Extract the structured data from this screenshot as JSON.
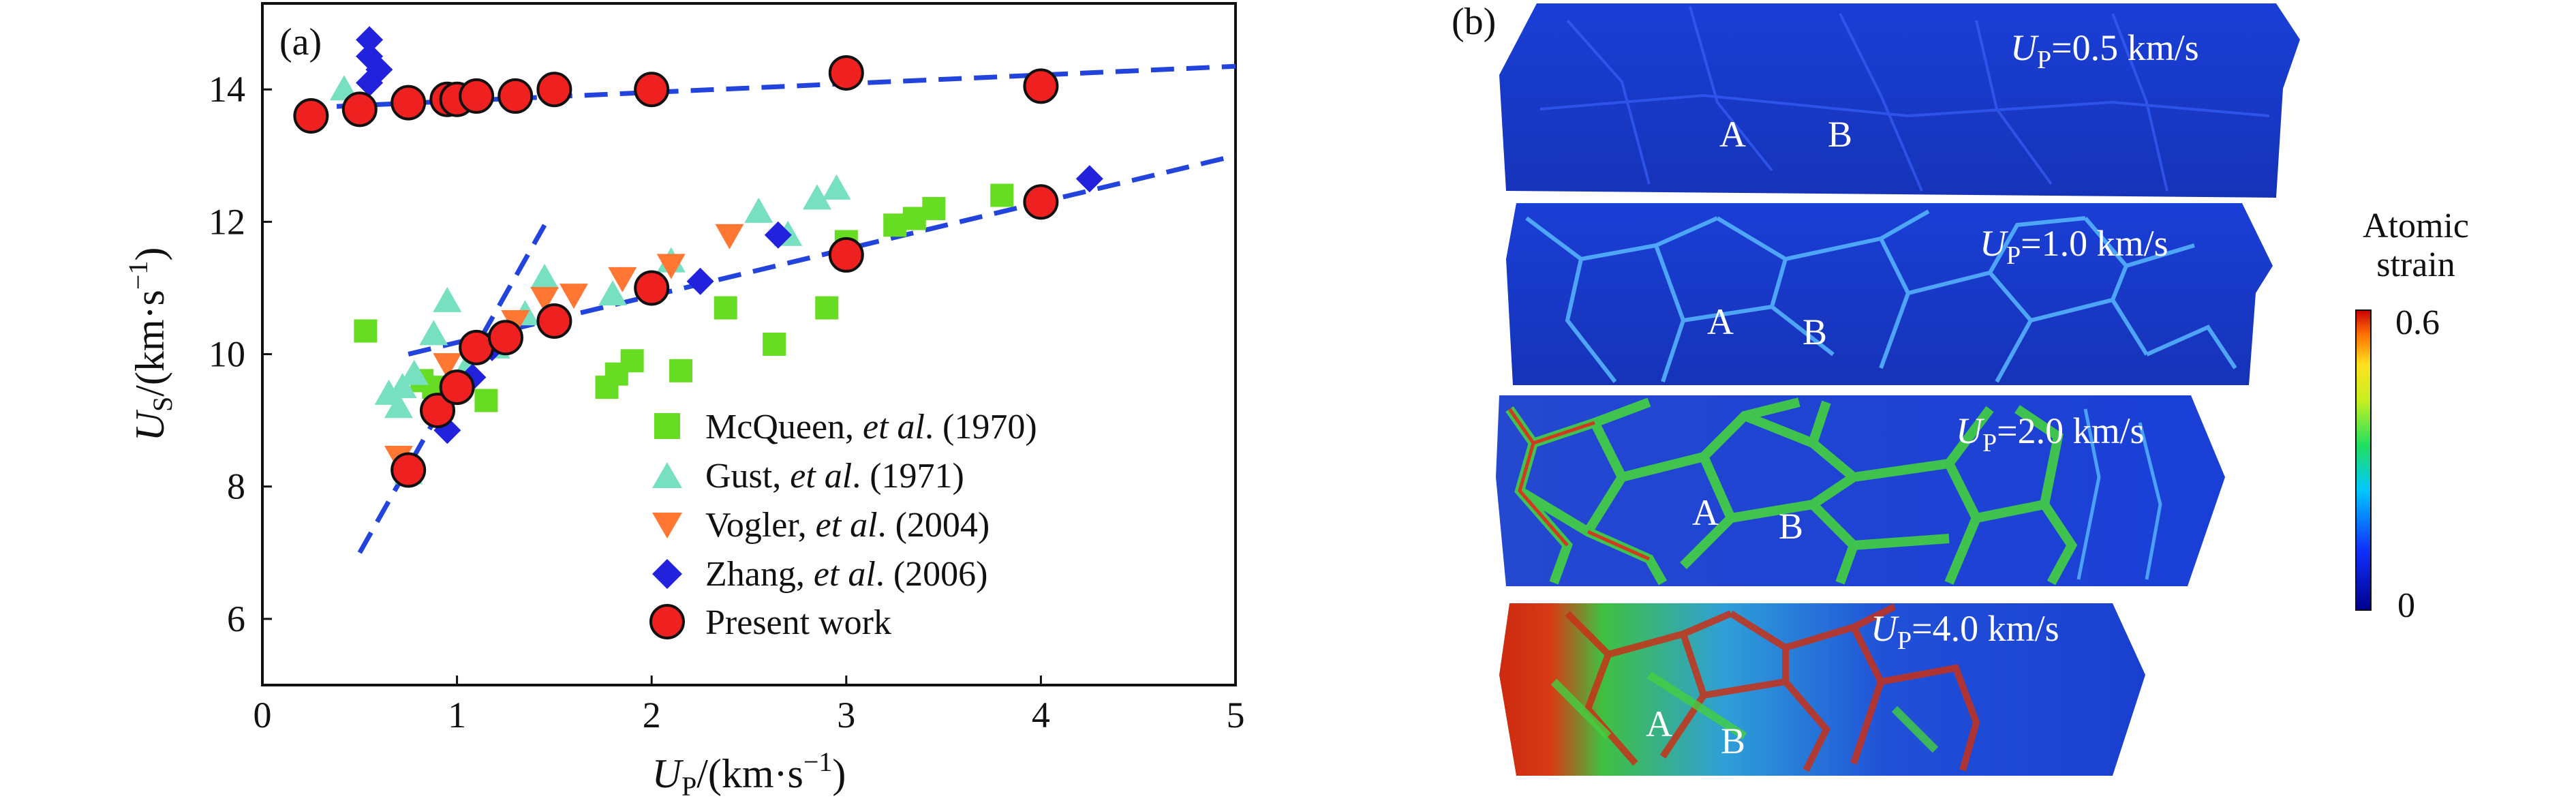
{
  "panel_a": {
    "label": "(a)",
    "xlabel": {
      "main": "U",
      "sub": "P",
      "unit": "/(km·s",
      "exp": "−1",
      "close": ")"
    },
    "ylabel": {
      "main": "U",
      "sub": "S",
      "unit": "/(km·s",
      "exp": "−1",
      "close": ")"
    },
    "legend": [
      {
        "prefix": "McQueen, ",
        "ital": "et al",
        "suffix": ". (1970)"
      },
      {
        "prefix": "Gust, ",
        "ital": "et al",
        "suffix": ". (1971)"
      },
      {
        "prefix": "Vogler, ",
        "ital": "et al",
        "suffix": ". (2004)"
      },
      {
        "prefix": "Zhang, ",
        "ital": "et al",
        "suffix": ". (2006)"
      },
      {
        "prefix": "Present work",
        "ital": "",
        "suffix": ""
      }
    ]
  },
  "chart_data": {
    "type": "scatter",
    "xlim": [
      0,
      5
    ],
    "ylim": [
      5,
      15.3
    ],
    "xticks": [
      0,
      1,
      2,
      3,
      4,
      5
    ],
    "yticks": [
      6,
      8,
      10,
      12,
      14
    ],
    "grid": false,
    "legend_position": "lower-right",
    "series": [
      {
        "name": "McQueen, et al. (1970)",
        "marker": "square",
        "color": "#66dd22",
        "x": [
          0.53,
          0.82,
          0.88,
          1.15,
          1.77,
          1.82,
          1.9,
          2.15,
          2.38,
          2.63,
          2.9,
          3.0,
          3.25,
          3.35,
          3.45,
          3.8
        ],
        "y": [
          10.35,
          9.6,
          9.5,
          9.3,
          9.5,
          9.7,
          9.9,
          9.75,
          10.7,
          10.15,
          10.7,
          11.7,
          11.95,
          12.05,
          12.2,
          12.4
        ]
      },
      {
        "name": "Gust, et al. (1971)",
        "marker": "triangle-up",
        "color": "#77e0c0",
        "x": [
          0.42,
          0.65,
          0.7,
          0.72,
          0.75,
          0.78,
          0.88,
          0.95,
          1.05,
          1.2,
          1.35,
          1.45,
          1.8,
          2.1,
          2.55,
          2.7,
          2.85,
          2.95
        ],
        "y": [
          14.0,
          9.4,
          9.2,
          9.5,
          8.2,
          9.7,
          10.3,
          10.8,
          9.8,
          10.1,
          10.6,
          11.15,
          10.9,
          11.4,
          12.15,
          11.8,
          12.35,
          12.5
        ]
      },
      {
        "name": "Vogler, et al. (2004)",
        "marker": "triangle-down",
        "color": "#ff7733",
        "x": [
          0.7,
          0.95,
          1.1,
          1.3,
          1.45,
          1.6,
          1.85,
          2.1,
          2.4
        ],
        "y": [
          8.45,
          9.85,
          10.1,
          10.5,
          10.85,
          10.9,
          11.15,
          11.35,
          11.8
        ]
      },
      {
        "name": "Zhang, et al. (2006)",
        "marker": "diamond",
        "color": "#2222dd",
        "x": [
          0.55,
          0.55,
          0.6,
          0.55,
          0.95,
          1.08,
          1.18,
          2.25,
          2.65,
          4.25
        ],
        "y": [
          14.75,
          14.5,
          14.3,
          14.1,
          8.85,
          9.65,
          10.1,
          11.1,
          11.8,
          12.65
        ]
      },
      {
        "name": "Present work",
        "marker": "circle",
        "color": "#ee2020",
        "x": [
          0.25,
          0.5,
          0.75,
          0.95,
          1.0,
          1.1,
          1.3,
          1.5,
          2.0,
          3.0,
          4.0,
          0.75,
          0.9,
          1.0,
          1.1,
          1.25,
          1.5,
          2.0,
          3.0,
          4.0
        ],
        "y": [
          13.6,
          13.7,
          13.8,
          13.85,
          13.85,
          13.9,
          13.9,
          14.0,
          14.0,
          14.25,
          14.05,
          8.25,
          9.15,
          9.5,
          10.1,
          10.25,
          10.5,
          11.0,
          11.5,
          12.3
        ]
      }
    ],
    "fit_lines": [
      {
        "x": [
          0.2,
          5.0
        ],
        "y": [
          13.72,
          14.35
        ]
      },
      {
        "x": [
          0.5,
          1.45
        ],
        "y": [
          7.0,
          11.95
        ]
      },
      {
        "x": [
          0.75,
          5.0
        ],
        "y": [
          10.0,
          13.0
        ]
      }
    ]
  },
  "panel_b": {
    "label": "(b)",
    "colorbar": {
      "title_line1": "Atomic",
      "title_line2": "strain",
      "max_label": "0.6",
      "min_label": "0"
    },
    "slabs": [
      {
        "up_main": "U",
        "up_sub": "P",
        "up_value": "=0.5 km/s",
        "label_a": "A",
        "label_b": "B"
      },
      {
        "up_main": "U",
        "up_sub": "P",
        "up_value": "=1.0 km/s",
        "label_a": "A",
        "label_b": "B"
      },
      {
        "up_main": "U",
        "up_sub": "P",
        "up_value": "=2.0 km/s",
        "label_a": "A",
        "label_b": "B"
      },
      {
        "up_main": "U",
        "up_sub": "P",
        "up_value": "=4.0 km/s",
        "label_a": "A",
        "label_b": "B"
      }
    ]
  }
}
